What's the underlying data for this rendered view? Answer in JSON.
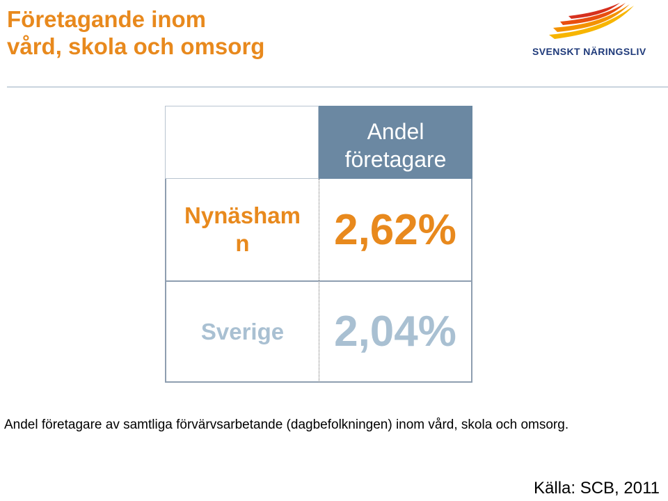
{
  "title": {
    "line1": "Företagande inom",
    "line2": "vård, skola och omsorg"
  },
  "logo": {
    "text": "SVENSKT NÄRINGSLIV"
  },
  "table": {
    "header": {
      "line1": "Andel",
      "line2": "företagare"
    },
    "rows": [
      {
        "label_line1": "Nynäsham",
        "label_line2": "n",
        "value": "2,62%"
      },
      {
        "label_line1": "Sverige",
        "label_line2": "",
        "value": "2,04%"
      }
    ]
  },
  "caption": "Andel företagare av samtliga förvärvsarbetande (dagbefolkningen) inom vård, skola och omsorg.",
  "source": "Källa: SCB, 2011",
  "colors": {
    "accent": "#e8891d",
    "header_bg": "#6b88a2",
    "secondary": "#a9c0d2",
    "logo_blue": "#1f3a7a"
  }
}
